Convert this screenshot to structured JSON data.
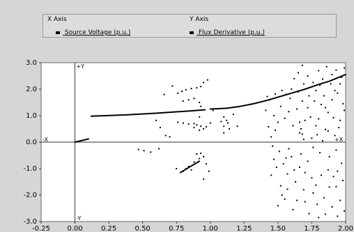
{
  "header": {
    "x_axis_title": "X Axis",
    "y_axis_title": "Y Axis"
  },
  "legend": {
    "series": [
      {
        "name": "Source Voltage (p.u.)",
        "color": "#000000"
      },
      {
        "name": "Flux Derivative (p.u.)",
        "color": "#000000"
      }
    ]
  },
  "chart_data": {
    "type": "scatter",
    "title": "",
    "xlim": [
      -0.25,
      2.0
    ],
    "ylim": [
      -3.0,
      3.0
    ],
    "xticks": [
      -0.25,
      0.0,
      0.25,
      0.5,
      0.75,
      1.0,
      1.25,
      1.5,
      1.75,
      2.0
    ],
    "xtick_labels": [
      "-0.25",
      "0.00",
      "0.25",
      "0.50",
      "0.75",
      "1.00",
      "1.25",
      "1.50",
      "1.75",
      "2.00"
    ],
    "yticks": [
      3.0,
      2.0,
      1.0,
      0.0,
      -1.0,
      -2.0,
      -3.0
    ],
    "ytick_labels": [
      "3.0",
      "2.0",
      "1.0",
      "0.0",
      "-1.0",
      "-2.0",
      "-3.0"
    ],
    "axis_markers": {
      "plus_y": "+Y",
      "minus_y": "-Y",
      "plus_x": "+X",
      "minus_x": "-X"
    },
    "lines": [
      {
        "x": [
          0.0,
          0.1
        ],
        "y": [
          0.0,
          0.12
        ]
      },
      {
        "x": [
          0.12,
          0.38,
          0.62,
          0.85,
          0.96
        ],
        "y": [
          0.98,
          1.03,
          1.1,
          1.18,
          1.22
        ]
      },
      {
        "x": [
          1.0,
          1.12,
          1.22,
          1.32,
          1.42,
          1.5,
          1.6,
          1.7,
          1.8,
          1.88,
          1.95,
          2.0
        ],
        "y": [
          1.25,
          1.28,
          1.35,
          1.45,
          1.58,
          1.7,
          1.85,
          2.0,
          2.18,
          2.3,
          2.45,
          2.55
        ]
      },
      {
        "x": [
          0.78,
          0.86,
          0.92
        ],
        "y": [
          -1.15,
          -0.9,
          -0.72
        ]
      }
    ],
    "points": [
      [
        0.76,
        1.85
      ],
      [
        0.79,
        1.92
      ],
      [
        0.82,
        1.98
      ],
      [
        0.86,
        2.02
      ],
      [
        0.9,
        2.05
      ],
      [
        0.93,
        2.1
      ],
      [
        0.76,
        0.75
      ],
      [
        0.8,
        0.72
      ],
      [
        0.84,
        0.68
      ],
      [
        0.88,
        0.7
      ],
      [
        0.9,
        0.65
      ],
      [
        0.93,
        0.6
      ],
      [
        0.8,
        1.55
      ],
      [
        0.84,
        1.6
      ],
      [
        0.88,
        1.65
      ],
      [
        0.92,
        1.5
      ],
      [
        0.93,
        1.35
      ],
      [
        0.92,
        0.45
      ],
      [
        0.95,
        0.5
      ],
      [
        0.97,
        0.58
      ],
      [
        0.95,
        2.25
      ],
      [
        0.98,
        2.35
      ],
      [
        0.72,
        2.12
      ],
      [
        0.66,
        1.8
      ],
      [
        0.6,
        0.82
      ],
      [
        0.63,
        0.55
      ],
      [
        0.67,
        0.25
      ],
      [
        0.7,
        0.2
      ],
      [
        0.62,
        -0.25
      ],
      [
        0.56,
        -0.38
      ],
      [
        0.51,
        -0.32
      ],
      [
        0.47,
        -0.28
      ],
      [
        0.9,
        -0.45
      ],
      [
        0.93,
        -0.42
      ],
      [
        0.95,
        -0.55
      ],
      [
        0.92,
        -0.62
      ],
      [
        0.82,
        -1.0
      ],
      [
        0.86,
        -1.05
      ],
      [
        0.8,
        -1.1
      ],
      [
        0.84,
        -0.92
      ],
      [
        0.88,
        -0.75
      ],
      [
        0.97,
        -0.82
      ],
      [
        0.99,
        -1.1
      ],
      [
        0.75,
        -1.0
      ],
      [
        0.95,
        -1.4
      ],
      [
        0.92,
        0.95
      ],
      [
        0.88,
        0.55
      ],
      [
        1.1,
        0.95
      ],
      [
        1.1,
        0.6
      ],
      [
        1.1,
        0.35
      ],
      [
        1.14,
        0.5
      ],
      [
        1.0,
        0.72
      ],
      [
        1.02,
        1.2
      ],
      [
        1.08,
        0.78
      ],
      [
        1.12,
        0.82
      ],
      [
        1.2,
        0.6
      ],
      [
        1.17,
        1.05
      ],
      [
        1.13,
        0.72
      ],
      [
        1.42,
        1.72
      ],
      [
        1.48,
        1.82
      ],
      [
        1.53,
        1.95
      ],
      [
        1.56,
        1.8
      ],
      [
        1.6,
        2.0
      ],
      [
        1.62,
        2.4
      ],
      [
        1.65,
        2.62
      ],
      [
        1.68,
        2.9
      ],
      [
        1.72,
        2.5
      ],
      [
        1.76,
        2.25
      ],
      [
        1.8,
        2.7
      ],
      [
        1.83,
        2.38
      ],
      [
        1.86,
        2.85
      ],
      [
        1.9,
        2.55
      ],
      [
        1.93,
        2.72
      ],
      [
        1.96,
        2.2
      ],
      [
        1.99,
        2.8
      ],
      [
        1.72,
        1.3
      ],
      [
        1.74,
        0.95
      ],
      [
        1.78,
        0.62
      ],
      [
        1.8,
        0.88
      ],
      [
        1.82,
        1.42
      ],
      [
        1.85,
        0.48
      ],
      [
        1.87,
        1.12
      ],
      [
        1.9,
        1.6
      ],
      [
        1.92,
        0.25
      ],
      [
        1.94,
        1.85
      ],
      [
        1.96,
        0.82
      ],
      [
        1.98,
        1.45
      ],
      [
        1.78,
        1.95
      ],
      [
        1.84,
        1.75
      ],
      [
        1.68,
        1.55
      ],
      [
        1.64,
        1.25
      ],
      [
        1.58,
        1.15
      ],
      [
        1.52,
        1.35
      ],
      [
        1.5,
        0.75
      ],
      [
        1.48,
        0.45
      ],
      [
        1.45,
        0.2
      ],
      [
        1.43,
        0.58
      ],
      [
        1.47,
        1.0
      ],
      [
        1.55,
        0.9
      ],
      [
        1.61,
        0.62
      ],
      [
        1.66,
        0.35
      ],
      [
        1.7,
        0.82
      ],
      [
        1.75,
        0.15
      ],
      [
        1.79,
        0.28
      ],
      [
        1.83,
        0.05
      ],
      [
        1.87,
        0.42
      ],
      [
        1.91,
        0.92
      ],
      [
        1.95,
        0.55
      ],
      [
        1.99,
        1.2
      ],
      [
        1.51,
        -0.35
      ],
      [
        1.54,
        -0.82
      ],
      [
        1.57,
        -1.2
      ],
      [
        1.6,
        -0.55
      ],
      [
        1.63,
        -1.5
      ],
      [
        1.66,
        -0.95
      ],
      [
        1.69,
        -1.8
      ],
      [
        1.72,
        -0.72
      ],
      [
        1.75,
        -1.35
      ],
      [
        1.78,
        -1.62
      ],
      [
        1.81,
        -0.4
      ],
      [
        1.84,
        -2.1
      ],
      [
        1.87,
        -1.05
      ],
      [
        1.9,
        -2.45
      ],
      [
        1.93,
        -1.68
      ],
      [
        1.96,
        -2.2
      ],
      [
        1.98,
        -1.45
      ],
      [
        1.52,
        -1.65
      ],
      [
        1.55,
        -2.15
      ],
      [
        1.58,
        -0.25
      ],
      [
        1.61,
        -2.55
      ],
      [
        1.64,
        -2.2
      ],
      [
        1.67,
        -0.45
      ],
      [
        1.7,
        -1.15
      ],
      [
        1.73,
        -2.7
      ],
      [
        1.76,
        -1.92
      ],
      [
        1.79,
        -2.35
      ],
      [
        1.82,
        -1.25
      ],
      [
        1.85,
        -2.72
      ],
      [
        1.88,
        -0.55
      ],
      [
        1.91,
        -1.3
      ],
      [
        1.94,
        -2.8
      ],
      [
        1.97,
        -0.8
      ],
      [
        1.99,
        -2.6
      ],
      [
        1.47,
        -0.65
      ],
      [
        1.45,
        -1.25
      ],
      [
        1.5,
        -2.4
      ],
      [
        1.53,
        -2.0
      ],
      [
        1.56,
        -0.6
      ],
      [
        1.46,
        -0.15
      ],
      [
        1.49,
        -0.95
      ],
      [
        1.69,
        2.2
      ],
      [
        1.73,
        1.75
      ],
      [
        1.77,
        1.55
      ],
      [
        1.81,
        2.15
      ],
      [
        1.89,
        2.2
      ],
      [
        1.92,
        1.95
      ],
      [
        1.97,
        2.45
      ],
      [
        1.65,
        1.9
      ],
      [
        1.59,
        1.65
      ],
      [
        1.41,
        1.2
      ],
      [
        1.44,
        1.6
      ],
      [
        1.66,
        0.75
      ],
      [
        1.67,
        0.5
      ],
      [
        1.68,
        0.3
      ],
      [
        1.69,
        0.1
      ],
      [
        1.85,
        1.3
      ],
      [
        1.93,
        -0.3
      ],
      [
        1.88,
        -1.7
      ],
      [
        1.76,
        -0.2
      ],
      [
        1.62,
        -1.05
      ],
      [
        1.57,
        -1.78
      ],
      [
        1.7,
        -2.25
      ],
      [
        1.8,
        -2.85
      ],
      [
        1.94,
        -1.1
      ]
    ]
  }
}
